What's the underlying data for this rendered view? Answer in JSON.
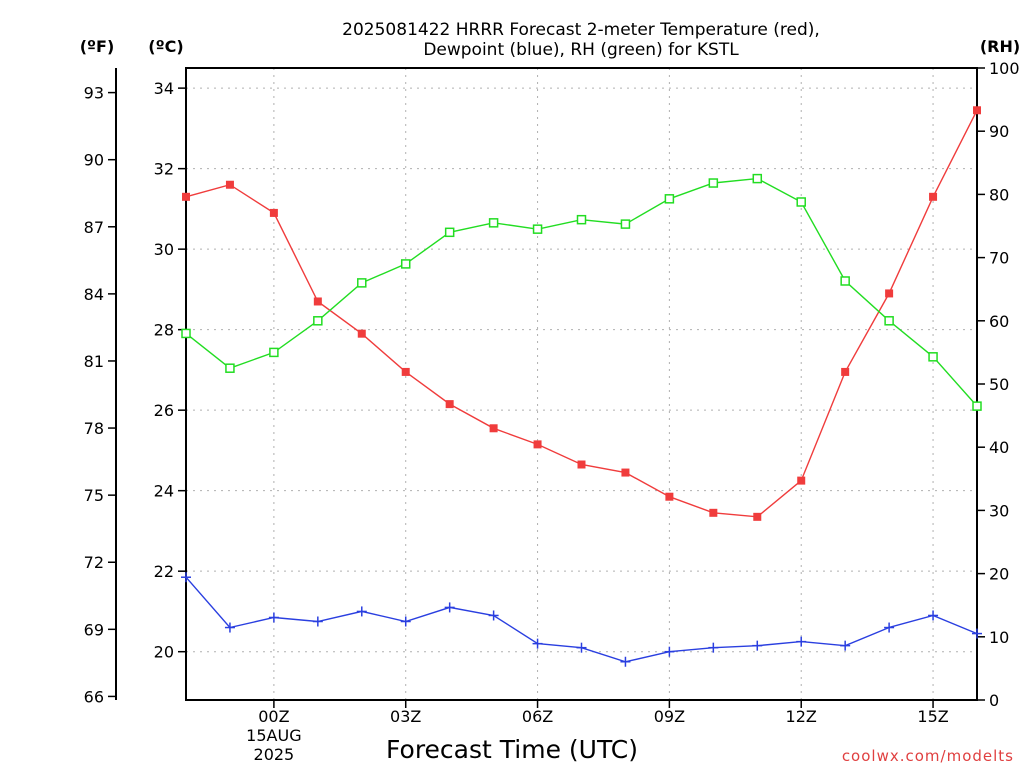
{
  "chart_data": {
    "type": "line",
    "title_lines": [
      "2025081422 HRRR Forecast 2-meter Temperature (red),",
      "Dewpoint (blue), RH (green) for KSTL"
    ],
    "xlabel": "Forecast Time (UTC)",
    "credit": "coolwx.com/modelts",
    "left_outer_unit": "(ºF)",
    "left_inner_unit": "(ºC)",
    "right_unit": "(RH)",
    "x_hours": [
      -2,
      -1,
      0,
      1,
      2,
      3,
      4,
      5,
      6,
      7,
      8,
      9,
      10,
      11,
      12,
      13,
      14,
      15,
      16
    ],
    "x_ticks": [
      {
        "hour": 0,
        "label": "00Z",
        "sub1": "15AUG",
        "sub2": "2025"
      },
      {
        "hour": 3,
        "label": "03Z"
      },
      {
        "hour": 6,
        "label": "06Z"
      },
      {
        "hour": 9,
        "label": "09Z"
      },
      {
        "hour": 12,
        "label": "12Z"
      },
      {
        "hour": 15,
        "label": "15Z"
      }
    ],
    "y_celsius": {
      "min": 18.8,
      "max": 34.5,
      "ticks": [
        20,
        22,
        24,
        26,
        28,
        30,
        32,
        34
      ]
    },
    "y_fahrenheit_ticks": [
      66,
      69,
      72,
      75,
      78,
      81,
      84,
      87,
      90,
      93
    ],
    "y_rh": {
      "min": 0,
      "max": 100,
      "ticks": [
        0,
        10,
        20,
        30,
        40,
        50,
        60,
        70,
        80,
        90,
        100
      ]
    },
    "series": [
      {
        "name": "Temperature (red)",
        "axis": "celsius",
        "color": "#f03c3c",
        "marker": "filled-square",
        "values": [
          31.3,
          31.6,
          30.9,
          28.7,
          27.9,
          26.95,
          26.15,
          25.55,
          25.15,
          24.65,
          24.45,
          23.85,
          23.45,
          23.35,
          24.25,
          26.95,
          28.9,
          31.3,
          33.45
        ]
      },
      {
        "name": "Dewpoint (blue)",
        "axis": "celsius",
        "color": "#2a3fe0",
        "marker": "plus",
        "values": [
          21.85,
          20.6,
          20.85,
          20.75,
          21.0,
          20.75,
          21.1,
          20.9,
          20.2,
          20.1,
          19.75,
          20.0,
          20.1,
          20.15,
          20.25,
          20.15,
          20.6,
          20.9,
          20.45
        ]
      },
      {
        "name": "RH (green)",
        "axis": "rh",
        "color": "#22dd22",
        "marker": "open-square",
        "values": [
          58,
          52.5,
          55,
          60,
          66,
          69,
          74,
          75.5,
          74.5,
          76,
          75.3,
          79.3,
          81.8,
          82.5,
          78.8,
          66.3,
          60,
          54.3,
          46.5
        ]
      }
    ]
  }
}
